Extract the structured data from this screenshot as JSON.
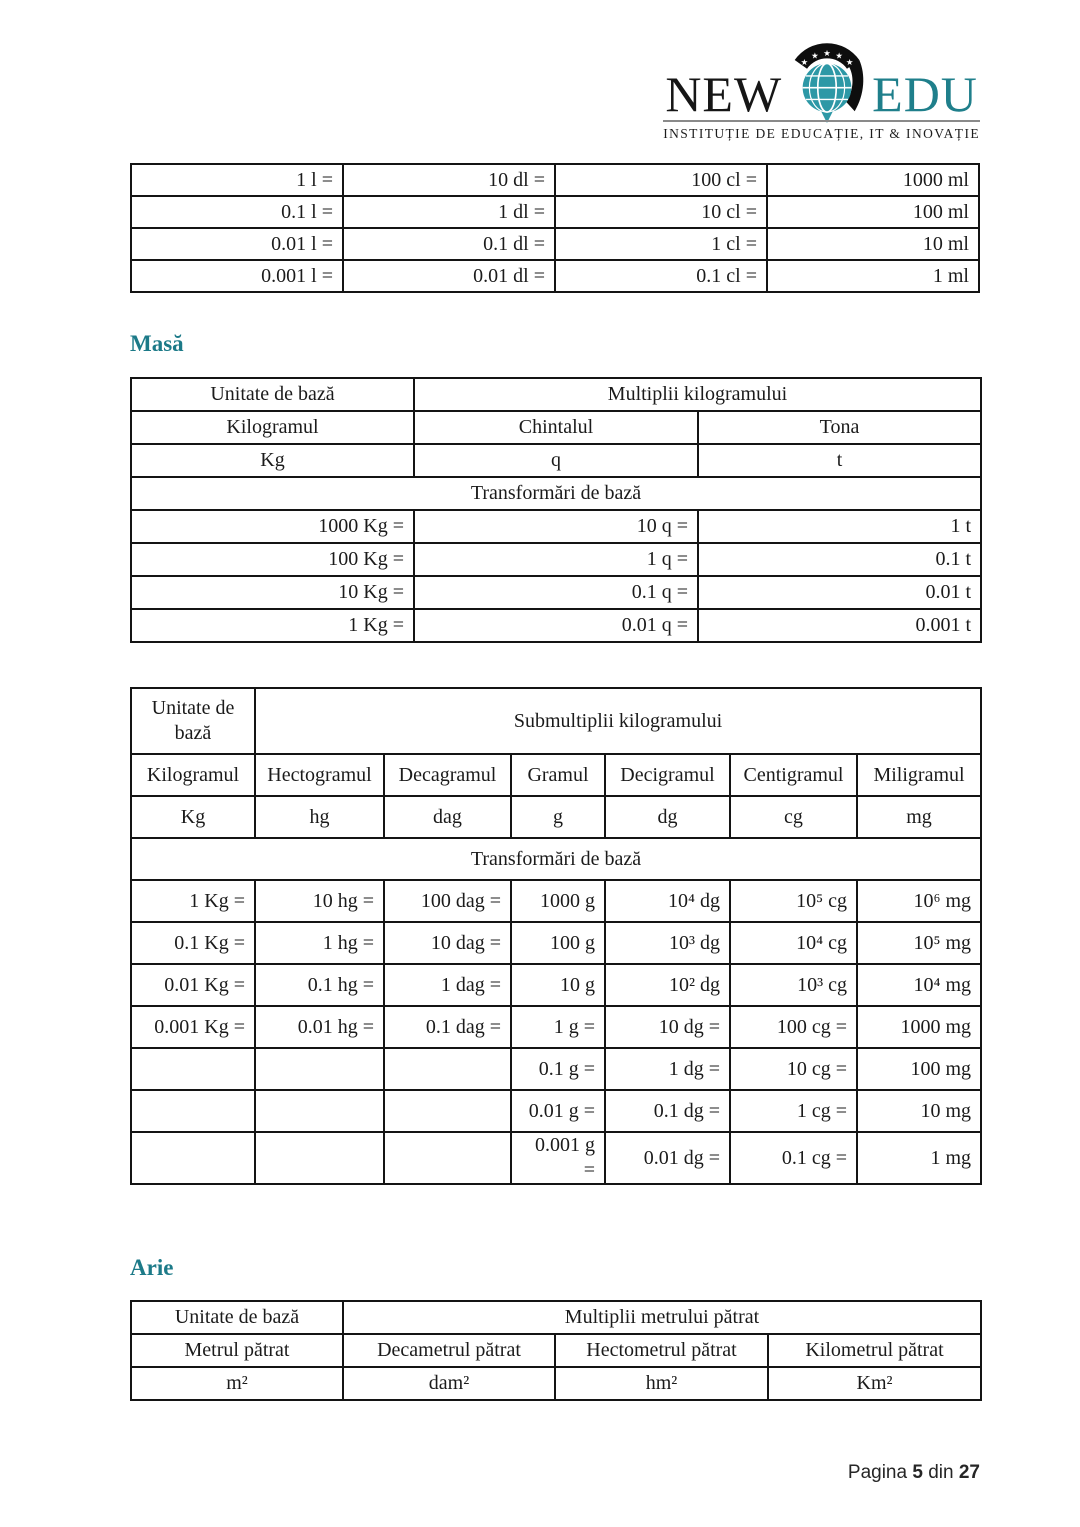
{
  "colors": {
    "accent_teal": "#1f7f8b",
    "heading_teal": "#1c7a88",
    "globe_teal": "#2d98a6",
    "border_black": "#141414"
  },
  "logo": {
    "word_new": "NEW",
    "word_edu": "EDU",
    "subtitle": "INSTITUȚIE DE EDUCAȚIE, IT & INOVAȚIE",
    "globe_icon": "globe-with-stars-and-swoosh"
  },
  "liters_table": {
    "rows": [
      [
        "1 l =",
        "10 dl =",
        "100 cl =",
        "1000 ml"
      ],
      [
        "0.1 l =",
        "1 dl =",
        "10 cl =",
        "100 ml"
      ],
      [
        "0.01 l =",
        "0.1 dl =",
        "1 cl =",
        "10 ml"
      ],
      [
        "0.001 l =",
        "0.01 dl =",
        "0.1 cl =",
        "1 ml"
      ]
    ]
  },
  "mass_section": {
    "heading": "Masă",
    "multiples": {
      "corner_label": "Unitate de bază",
      "span_label": "Multiplii kilogramului",
      "unit_names": [
        "Kilogramul",
        "Chintalul",
        "Tona"
      ],
      "unit_symbols": [
        "Kg",
        "q",
        "t"
      ],
      "transform_label": "Transformări de bază",
      "rows": [
        [
          "1000 Kg =",
          "10 q =",
          "1 t"
        ],
        [
          "100 Kg =",
          "1 q =",
          "0.1 t"
        ],
        [
          "10 Kg =",
          "0.1 q =",
          "0.01 t"
        ],
        [
          "1 Kg =",
          "0.01 q =",
          "0.001 t"
        ]
      ]
    },
    "submultiples": {
      "corner_label": "Unitate de bază",
      "span_label": "Submultiplii kilogramului",
      "unit_names": [
        "Kilogramul",
        "Hectogramul",
        "Decagramul",
        "Gramul",
        "Decigramul",
        "Centigramul",
        "Miligramul"
      ],
      "unit_symbols": [
        "Kg",
        "hg",
        "dag",
        "g",
        "dg",
        "cg",
        "mg"
      ],
      "transform_label": "Transformări de bază",
      "rows": [
        [
          "1 Kg =",
          "10 hg =",
          "100 dag =",
          "1000 g",
          "10⁴ dg",
          "10⁵ cg",
          "10⁶ mg"
        ],
        [
          "0.1 Kg =",
          "1 hg =",
          "10 dag =",
          "100 g",
          "10³ dg",
          "10⁴ cg",
          "10⁵ mg"
        ],
        [
          "0.01 Kg =",
          "0.1 hg =",
          "1 dag =",
          "10 g",
          "10² dg",
          "10³ cg",
          "10⁴ mg"
        ],
        [
          "0.001 Kg =",
          "0.01 hg =",
          "0.1 dag =",
          "1 g =",
          "10 dg =",
          "100 cg =",
          "1000 mg"
        ],
        [
          "",
          "",
          "",
          "0.1 g =",
          "1 dg =",
          "10 cg =",
          "100 mg"
        ],
        [
          "",
          "",
          "",
          "0.01 g =",
          "0.1 dg =",
          "1 cg =",
          "10 mg"
        ],
        [
          "",
          "",
          "",
          "0.001 g\n=",
          "0.01 dg =",
          "0.1 cg =",
          "1 mg"
        ]
      ]
    }
  },
  "area_section": {
    "heading": "Arie",
    "table": {
      "corner_label": "Unitate de bază",
      "span_label": "Multiplii metrului pătrat",
      "unit_names": [
        "Metrul pătrat",
        "Decametrul pătrat",
        "Hectometrul pătrat",
        "Kilometrul pătrat"
      ],
      "unit_symbols": [
        "m²",
        "dam²",
        "hm²",
        "Km²"
      ]
    }
  },
  "footer": {
    "prefix": "Pagina",
    "page_number": "5",
    "separator": "din",
    "total_pages": "27"
  }
}
